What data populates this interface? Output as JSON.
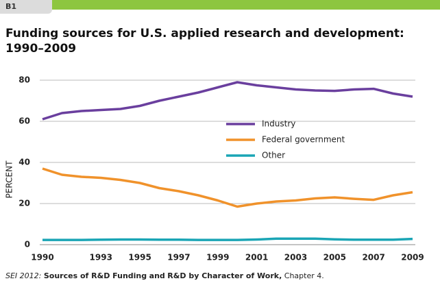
{
  "tab": "B1",
  "chart_data": {
    "type": "line",
    "title": "Funding sources for U.S. applied research and development: 1990–2009",
    "ylabel": "PERCENT",
    "x": [
      1990,
      1991,
      1992,
      1993,
      1994,
      1995,
      1996,
      1997,
      1998,
      1999,
      2000,
      2001,
      2002,
      2003,
      2004,
      2005,
      2006,
      2007,
      2008,
      2009
    ],
    "xlim": [
      1990,
      2009
    ],
    "xticks": [
      1990,
      1993,
      1995,
      1997,
      1999,
      2001,
      2003,
      2005,
      2007,
      2009
    ],
    "ylim": [
      0,
      80
    ],
    "yticks": [
      0,
      20,
      40,
      60,
      80
    ],
    "grid": true,
    "series": [
      {
        "name": "Industry",
        "color": "#6a3f9e",
        "values": [
          61,
          64,
          65,
          65.5,
          66,
          67.5,
          70,
          72,
          74,
          76.5,
          79,
          77.5,
          76.5,
          75.5,
          75,
          74.8,
          75.5,
          75.8,
          73.5,
          72
        ]
      },
      {
        "name": "Federal government",
        "color": "#f0922b",
        "values": [
          37,
          34,
          33,
          32.5,
          31.5,
          30,
          27.5,
          26,
          24,
          21.5,
          18.5,
          20,
          21,
          21.5,
          22.5,
          23,
          22.3,
          21.8,
          24,
          25.5
        ]
      },
      {
        "name": "Other",
        "color": "#1aa5b5",
        "values": [
          2.3,
          2.3,
          2.3,
          2.4,
          2.5,
          2.5,
          2.4,
          2.4,
          2.3,
          2.3,
          2.3,
          2.5,
          2.9,
          2.9,
          2.9,
          2.6,
          2.4,
          2.4,
          2.4,
          2.8
        ]
      }
    ],
    "source": [
      "SEI 2012:",
      "Sources of R&D Funding",
      "and",
      "R&D by Character of Work,",
      "Chapter 4."
    ]
  }
}
